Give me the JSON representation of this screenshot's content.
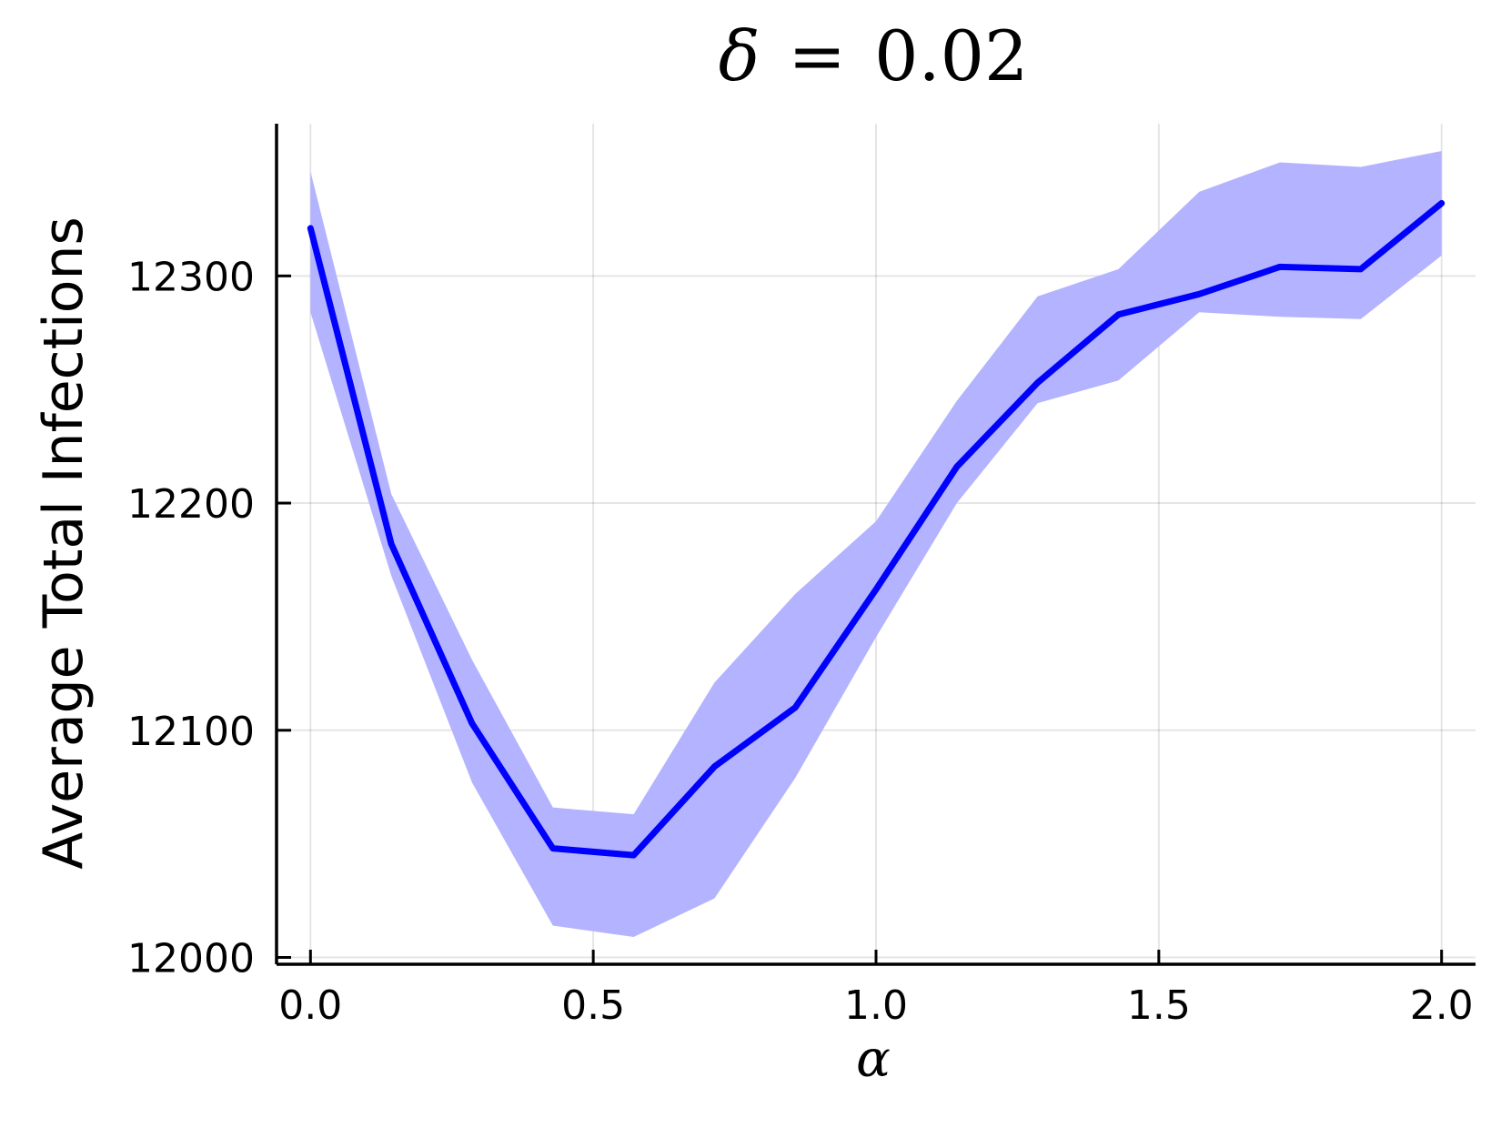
{
  "chart_data": {
    "type": "line",
    "title": {
      "symbol": "δ",
      "operator": "=",
      "value": "0.02"
    },
    "xlabel": "α",
    "ylabel": "Average Total Infections",
    "xlim": [
      -0.06,
      2.06
    ],
    "ylim": [
      11997,
      12367
    ],
    "x_ticks": [
      {
        "value": 0.0,
        "label": "0.0"
      },
      {
        "value": 0.5,
        "label": "0.5"
      },
      {
        "value": 1.0,
        "label": "1.0"
      },
      {
        "value": 1.5,
        "label": "1.5"
      },
      {
        "value": 2.0,
        "label": "2.0"
      }
    ],
    "y_ticks": [
      {
        "value": 12000,
        "label": "12000"
      },
      {
        "value": 12100,
        "label": "12100"
      },
      {
        "value": 12200,
        "label": "12200"
      },
      {
        "value": 12300,
        "label": "12300"
      }
    ],
    "grid": true,
    "legend": "none",
    "x": [
      0.0,
      0.1429,
      0.2857,
      0.4286,
      0.5714,
      0.7143,
      0.8571,
      1.0,
      1.1429,
      1.2857,
      1.4286,
      1.5714,
      1.7143,
      1.8571,
      2.0
    ],
    "series": [
      {
        "values": [
          12321,
          12182,
          12103,
          12048,
          12045,
          12084,
          12110,
          12162,
          12216,
          12253,
          12283,
          12292,
          12304,
          12303,
          12332
        ],
        "lower": [
          12284,
          12168,
          12077,
          12014,
          12009,
          12026,
          12079,
          12141,
          12200,
          12244,
          12254,
          12284,
          12282,
          12281,
          12309
        ],
        "upper": [
          12346,
          12204,
          12131,
          12066,
          12063,
          12121,
          12160,
          12192,
          12245,
          12291,
          12303,
          12337,
          12350,
          12348,
          12355
        ],
        "color": "#0000ff",
        "band_color": "#b3b3ff"
      }
    ]
  }
}
